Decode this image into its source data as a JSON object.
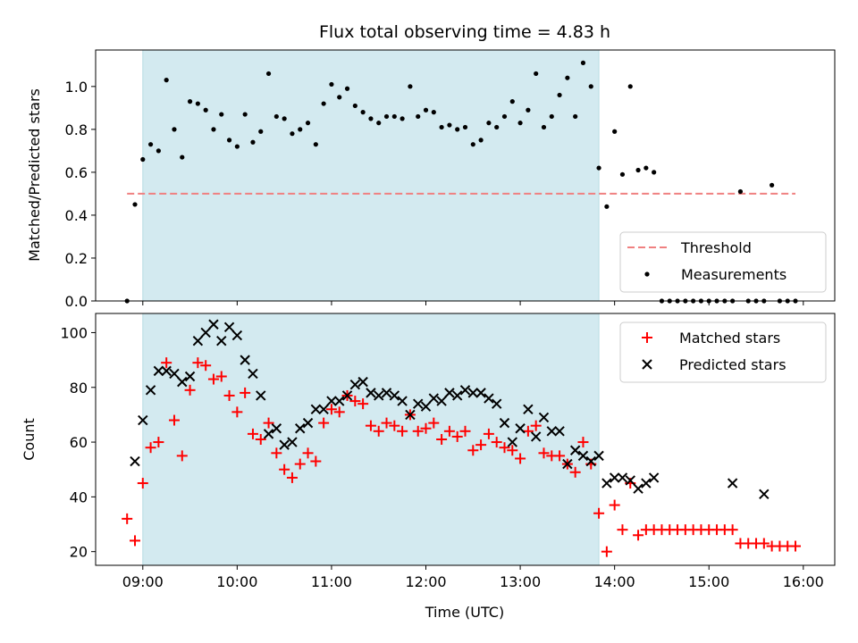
{
  "chart_data": [
    {
      "type": "scatter",
      "title": "Flux total observing time = 4.83 h",
      "ylabel": "Matched/Predicted stars",
      "xlabel": "",
      "xlim": [
        "08:30",
        "16:20"
      ],
      "ylim": [
        0,
        1.17
      ],
      "yticks": [
        0.0,
        0.2,
        0.4,
        0.6,
        0.8,
        1.0
      ],
      "ytick_labels": [
        "0.0",
        "0.2",
        "0.4",
        "0.6",
        "0.8",
        "1.0"
      ],
      "shaded_span": [
        "09:00",
        "13:50"
      ],
      "shade_color": "#d3eaf0",
      "threshold": {
        "name": "Threshold",
        "value": 0.5,
        "x_start": "08:50",
        "x_end": "15:55",
        "color": "#f08080"
      },
      "legend_position": "lower-right",
      "series": [
        {
          "name": "Measurements",
          "color": "#000000",
          "marker": "dot",
          "x": [
            "08:50",
            "08:55",
            "09:00",
            "09:05",
            "09:10",
            "09:15",
            "09:20",
            "09:25",
            "09:30",
            "09:35",
            "09:40",
            "09:45",
            "09:50",
            "09:55",
            "10:00",
            "10:05",
            "10:10",
            "10:15",
            "10:20",
            "10:25",
            "10:30",
            "10:35",
            "10:40",
            "10:45",
            "10:50",
            "10:55",
            "11:00",
            "11:05",
            "11:10",
            "11:15",
            "11:20",
            "11:25",
            "11:30",
            "11:35",
            "11:40",
            "11:45",
            "11:50",
            "11:55",
            "12:00",
            "12:05",
            "12:10",
            "12:15",
            "12:20",
            "12:25",
            "12:30",
            "12:35",
            "12:40",
            "12:45",
            "12:50",
            "12:55",
            "13:00",
            "13:05",
            "13:10",
            "13:15",
            "13:20",
            "13:25",
            "13:30",
            "13:35",
            "13:40",
            "13:45",
            "13:50",
            "13:55",
            "14:00",
            "14:05",
            "14:10",
            "14:15",
            "14:20",
            "14:25",
            "14:30",
            "14:35",
            "14:40",
            "14:45",
            "14:50",
            "14:55",
            "15:00",
            "15:05",
            "15:10",
            "15:15",
            "15:20",
            "15:25",
            "15:30",
            "15:35",
            "15:40",
            "15:45",
            "15:50",
            "15:55"
          ],
          "y": [
            0.0,
            0.45,
            0.66,
            0.73,
            0.7,
            1.03,
            0.8,
            0.67,
            0.93,
            0.92,
            0.89,
            0.8,
            0.87,
            0.75,
            0.72,
            0.87,
            0.74,
            0.79,
            1.06,
            0.86,
            0.85,
            0.78,
            0.8,
            0.83,
            0.73,
            0.92,
            1.01,
            0.95,
            0.99,
            0.91,
            0.88,
            0.85,
            0.83,
            0.86,
            0.86,
            0.85,
            1.0,
            0.86,
            0.89,
            0.88,
            0.81,
            0.82,
            0.8,
            0.81,
            0.73,
            0.75,
            0.83,
            0.81,
            0.86,
            0.93,
            0.83,
            0.89,
            1.06,
            0.81,
            0.86,
            0.96,
            1.04,
            0.86,
            1.11,
            1.0,
            0.62,
            0.44,
            0.79,
            0.59,
            1.0,
            0.61,
            0.62,
            0.6,
            0.0,
            0.0,
            0.0,
            0.0,
            0.0,
            0.0,
            0.0,
            0.0,
            0.0,
            0.0,
            0.51,
            0.0,
            0.0,
            0.0,
            0.54,
            0.0,
            0.0,
            0.0
          ]
        }
      ]
    },
    {
      "type": "scatter",
      "title": "",
      "ylabel": "Count",
      "xlabel": "Time (UTC)",
      "xlim": [
        "08:30",
        "16:20"
      ],
      "ylim": [
        15,
        107
      ],
      "yticks": [
        20,
        40,
        60,
        80,
        100
      ],
      "ytick_labels": [
        "20",
        "40",
        "60",
        "80",
        "100"
      ],
      "xticks": [
        "09:00",
        "10:00",
        "11:00",
        "12:00",
        "13:00",
        "14:00",
        "15:00",
        "16:00"
      ],
      "xtick_labels": [
        "09:00",
        "10:00",
        "11:00",
        "12:00",
        "13:00",
        "14:00",
        "15:00",
        "16:00"
      ],
      "shaded_span": [
        "09:00",
        "13:50"
      ],
      "shade_color": "#d3eaf0",
      "legend_position": "upper-right",
      "series": [
        {
          "name": "Matched stars",
          "color": "#ff0000",
          "marker": "plus",
          "x": [
            "08:50",
            "08:55",
            "09:00",
            "09:05",
            "09:10",
            "09:15",
            "09:20",
            "09:25",
            "09:30",
            "09:35",
            "09:40",
            "09:45",
            "09:50",
            "09:55",
            "10:00",
            "10:05",
            "10:10",
            "10:15",
            "10:20",
            "10:25",
            "10:30",
            "10:35",
            "10:40",
            "10:45",
            "10:50",
            "10:55",
            "11:00",
            "11:05",
            "11:10",
            "11:15",
            "11:20",
            "11:25",
            "11:30",
            "11:35",
            "11:40",
            "11:45",
            "11:50",
            "11:55",
            "12:00",
            "12:05",
            "12:10",
            "12:15",
            "12:20",
            "12:25",
            "12:30",
            "12:35",
            "12:40",
            "12:45",
            "12:50",
            "12:55",
            "13:00",
            "13:05",
            "13:10",
            "13:15",
            "13:20",
            "13:25",
            "13:30",
            "13:35",
            "13:40",
            "13:45",
            "13:50",
            "13:55",
            "14:00",
            "14:05",
            "14:10",
            "14:15",
            "14:20",
            "14:25",
            "14:30",
            "14:35",
            "14:40",
            "14:45",
            "14:50",
            "14:55",
            "15:00",
            "15:05",
            "15:10",
            "15:15",
            "15:20",
            "15:25",
            "15:30",
            "15:35",
            "15:40",
            "15:45",
            "15:50",
            "15:55"
          ],
          "y": [
            32,
            24,
            45,
            58,
            60,
            89,
            68,
            55,
            79,
            89,
            88,
            83,
            84,
            77,
            71,
            78,
            63,
            61,
            67,
            56,
            50,
            47,
            52,
            56,
            53,
            67,
            72,
            71,
            77,
            75,
            74,
            66,
            64,
            67,
            66,
            64,
            70,
            64,
            65,
            67,
            61,
            64,
            62,
            64,
            57,
            59,
            63,
            60,
            58,
            57,
            54,
            64,
            66,
            56,
            55,
            55,
            52,
            49,
            60,
            52,
            34,
            20,
            37,
            28,
            45,
            26,
            28,
            28,
            28,
            28,
            28,
            28,
            28,
            28,
            28,
            28,
            28,
            28,
            23,
            23,
            23,
            23,
            22,
            22,
            22,
            22
          ]
        },
        {
          "name": "Predicted stars",
          "color": "#000000",
          "marker": "x",
          "x": [
            "08:55",
            "09:00",
            "09:05",
            "09:10",
            "09:15",
            "09:20",
            "09:25",
            "09:30",
            "09:35",
            "09:40",
            "09:45",
            "09:50",
            "09:55",
            "10:00",
            "10:05",
            "10:10",
            "10:15",
            "10:20",
            "10:25",
            "10:30",
            "10:35",
            "10:40",
            "10:45",
            "10:50",
            "10:55",
            "11:00",
            "11:05",
            "11:10",
            "11:15",
            "11:20",
            "11:25",
            "11:30",
            "11:35",
            "11:40",
            "11:45",
            "11:50",
            "11:55",
            "12:00",
            "12:05",
            "12:10",
            "12:15",
            "12:20",
            "12:25",
            "12:30",
            "12:35",
            "12:40",
            "12:45",
            "12:50",
            "12:55",
            "13:00",
            "13:05",
            "13:10",
            "13:15",
            "13:20",
            "13:25",
            "13:30",
            "13:35",
            "13:40",
            "13:45",
            "13:50",
            "13:55",
            "14:00",
            "14:05",
            "14:10",
            "14:15",
            "14:20",
            "14:25",
            "15:15",
            "15:35"
          ],
          "y": [
            53,
            68,
            79,
            86,
            86,
            85,
            82,
            84,
            97,
            100,
            103,
            97,
            102,
            99,
            90,
            85,
            77,
            63,
            65,
            59,
            60,
            65,
            67,
            72,
            72,
            75,
            75,
            77,
            81,
            82,
            78,
            77,
            78,
            77,
            75,
            70,
            74,
            73,
            76,
            75,
            78,
            77,
            79,
            78,
            78,
            76,
            74,
            67,
            60,
            65,
            72,
            62,
            69,
            64,
            64,
            52,
            57,
            55,
            53,
            55,
            45,
            47,
            47,
            46,
            43,
            45,
            47,
            45,
            41
          ]
        }
      ]
    }
  ]
}
